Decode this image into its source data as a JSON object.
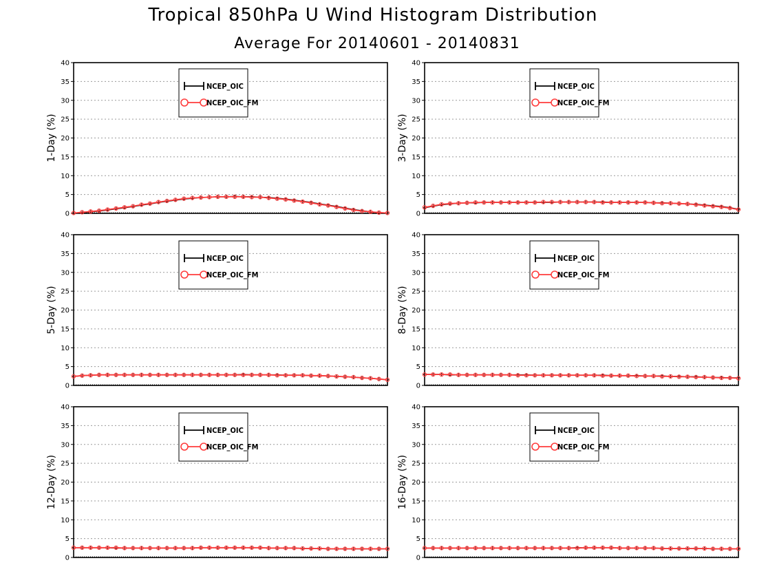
{
  "chart_data": {
    "type": "line",
    "title": "Tropical 850hPa U Wind Histogram Distribution",
    "subtitle": "Average For 20140601 - 20140831",
    "ylim": [
      0,
      40
    ],
    "yticks": [
      0,
      5,
      10,
      15,
      20,
      25,
      30,
      35,
      40
    ],
    "grid": true,
    "legend_position": "top-center",
    "colors": {
      "NCEP_OIC": "#000000",
      "NCEP_OIC_FM": "#ff3b3b"
    },
    "panels": [
      {
        "ylabel": "1-Day (%)",
        "series": [
          {
            "name": "NCEP_OIC",
            "values": [
              0.1,
              0.2,
              0.4,
              0.6,
              0.9,
              1.2,
              1.5,
              1.8,
              2.2,
              2.5,
              2.9,
              3.2,
              3.5,
              3.8,
              4.0,
              4.2,
              4.3,
              4.4,
              4.4,
              4.5,
              4.4,
              4.4,
              4.3,
              4.2,
              4.0,
              3.8,
              3.5,
              3.2,
              2.9,
              2.5,
              2.2,
              1.8,
              1.4,
              1.0,
              0.7,
              0.4,
              0.2,
              0.1
            ]
          },
          {
            "name": "NCEP_OIC_FM",
            "values": [
              0.1,
              0.3,
              0.5,
              0.7,
              1.0,
              1.3,
              1.6,
              1.9,
              2.3,
              2.6,
              3.0,
              3.3,
              3.6,
              3.9,
              4.1,
              4.2,
              4.3,
              4.4,
              4.4,
              4.4,
              4.4,
              4.3,
              4.3,
              4.1,
              3.9,
              3.7,
              3.4,
              3.1,
              2.8,
              2.4,
              2.1,
              1.7,
              1.3,
              0.9,
              0.6,
              0.4,
              0.2,
              0.1
            ]
          }
        ]
      },
      {
        "ylabel": "3-Day (%)",
        "series": [
          {
            "name": "NCEP_OIC",
            "values": [
              1.5,
              1.9,
              2.3,
              2.5,
              2.7,
              2.8,
              2.8,
              2.9,
              2.9,
              2.9,
              2.9,
              2.9,
              2.9,
              2.9,
              2.9,
              2.9,
              3.0,
              3.0,
              3.0,
              3.0,
              3.0,
              3.0,
              2.9,
              2.9,
              2.9,
              2.9,
              2.9,
              2.8,
              2.8,
              2.7,
              2.6,
              2.5,
              2.4,
              2.2,
              2.0,
              1.8,
              1.5,
              1.1
            ]
          },
          {
            "name": "NCEP_OIC_FM",
            "values": [
              1.6,
              2.0,
              2.4,
              2.6,
              2.7,
              2.8,
              2.9,
              2.9,
              2.9,
              2.9,
              2.9,
              2.9,
              2.9,
              2.9,
              3.0,
              3.0,
              3.0,
              3.0,
              3.0,
              3.0,
              3.0,
              2.9,
              2.9,
              2.9,
              2.9,
              2.9,
              2.9,
              2.8,
              2.7,
              2.7,
              2.6,
              2.5,
              2.3,
              2.1,
              1.9,
              1.7,
              1.4,
              1.0
            ]
          }
        ]
      },
      {
        "ylabel": "5-Day (%)",
        "series": [
          {
            "name": "NCEP_OIC",
            "values": [
              2.4,
              2.6,
              2.7,
              2.8,
              2.8,
              2.8,
              2.8,
              2.8,
              2.8,
              2.8,
              2.8,
              2.8,
              2.8,
              2.8,
              2.8,
              2.8,
              2.8,
              2.8,
              2.8,
              2.8,
              2.9,
              2.8,
              2.8,
              2.8,
              2.8,
              2.7,
              2.7,
              2.7,
              2.6,
              2.6,
              2.5,
              2.4,
              2.3,
              2.2,
              2.0,
              1.9,
              1.7,
              1.5
            ]
          },
          {
            "name": "NCEP_OIC_FM",
            "values": [
              2.4,
              2.6,
              2.7,
              2.8,
              2.8,
              2.8,
              2.8,
              2.8,
              2.8,
              2.8,
              2.8,
              2.8,
              2.8,
              2.8,
              2.8,
              2.8,
              2.8,
              2.8,
              2.8,
              2.8,
              2.8,
              2.8,
              2.8,
              2.8,
              2.7,
              2.7,
              2.7,
              2.7,
              2.6,
              2.6,
              2.5,
              2.4,
              2.3,
              2.2,
              2.0,
              1.9,
              1.7,
              1.5
            ]
          }
        ]
      },
      {
        "ylabel": "8-Day (%)",
        "series": [
          {
            "name": "NCEP_OIC",
            "values": [
              2.9,
              2.9,
              2.9,
              2.8,
              2.8,
              2.8,
              2.8,
              2.8,
              2.8,
              2.8,
              2.8,
              2.8,
              2.8,
              2.7,
              2.7,
              2.7,
              2.7,
              2.7,
              2.7,
              2.7,
              2.7,
              2.7,
              2.6,
              2.6,
              2.6,
              2.6,
              2.5,
              2.5,
              2.5,
              2.4,
              2.4,
              2.3,
              2.3,
              2.2,
              2.1,
              2.1,
              2.0,
              2.0
            ]
          },
          {
            "name": "NCEP_OIC_FM",
            "values": [
              2.9,
              2.9,
              2.9,
              2.9,
              2.8,
              2.8,
              2.8,
              2.8,
              2.8,
              2.8,
              2.8,
              2.7,
              2.7,
              2.7,
              2.7,
              2.7,
              2.7,
              2.7,
              2.7,
              2.7,
              2.7,
              2.6,
              2.6,
              2.6,
              2.6,
              2.5,
              2.5,
              2.5,
              2.4,
              2.4,
              2.3,
              2.3,
              2.2,
              2.2,
              2.1,
              2.0,
              2.0,
              1.9
            ]
          }
        ]
      },
      {
        "ylabel": "12-Day (%)",
        "series": [
          {
            "name": "NCEP_OIC",
            "values": [
              2.6,
              2.6,
              2.6,
              2.6,
              2.6,
              2.5,
              2.5,
              2.5,
              2.5,
              2.5,
              2.5,
              2.5,
              2.5,
              2.5,
              2.5,
              2.6,
              2.6,
              2.6,
              2.6,
              2.6,
              2.6,
              2.6,
              2.6,
              2.5,
              2.5,
              2.5,
              2.5,
              2.4,
              2.4,
              2.4,
              2.3,
              2.3,
              2.3,
              2.3,
              2.3,
              2.3,
              2.3,
              2.3
            ]
          },
          {
            "name": "NCEP_OIC_FM",
            "values": [
              2.6,
              2.6,
              2.6,
              2.6,
              2.6,
              2.6,
              2.5,
              2.5,
              2.5,
              2.5,
              2.5,
              2.5,
              2.5,
              2.5,
              2.5,
              2.6,
              2.6,
              2.6,
              2.6,
              2.6,
              2.6,
              2.6,
              2.6,
              2.5,
              2.5,
              2.5,
              2.5,
              2.4,
              2.4,
              2.4,
              2.3,
              2.3,
              2.3,
              2.3,
              2.3,
              2.3,
              2.3,
              2.3
            ]
          }
        ]
      },
      {
        "ylabel": "16-Day (%)",
        "series": [
          {
            "name": "NCEP_OIC",
            "values": [
              2.5,
              2.5,
              2.5,
              2.5,
              2.5,
              2.5,
              2.5,
              2.5,
              2.5,
              2.5,
              2.5,
              2.5,
              2.5,
              2.5,
              2.5,
              2.5,
              2.5,
              2.5,
              2.6,
              2.6,
              2.6,
              2.6,
              2.6,
              2.5,
              2.5,
              2.5,
              2.5,
              2.5,
              2.4,
              2.4,
              2.4,
              2.4,
              2.4,
              2.4,
              2.3,
              2.3,
              2.3,
              2.3
            ]
          },
          {
            "name": "NCEP_OIC_FM",
            "values": [
              2.5,
              2.5,
              2.5,
              2.5,
              2.5,
              2.5,
              2.5,
              2.5,
              2.5,
              2.5,
              2.5,
              2.5,
              2.5,
              2.5,
              2.5,
              2.5,
              2.5,
              2.5,
              2.5,
              2.6,
              2.6,
              2.6,
              2.6,
              2.5,
              2.5,
              2.5,
              2.5,
              2.5,
              2.4,
              2.4,
              2.4,
              2.4,
              2.4,
              2.4,
              2.3,
              2.3,
              2.3,
              2.3
            ]
          }
        ]
      }
    ]
  }
}
